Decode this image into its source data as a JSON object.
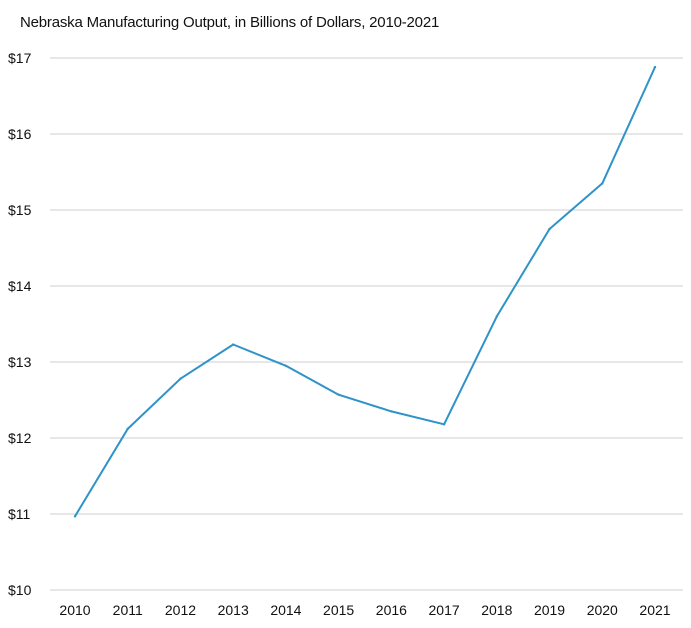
{
  "chart_data": {
    "type": "line",
    "title": "Nebraska Manufacturing Output, in Billions of Dollars, 2010-2021",
    "xlabel": "",
    "ylabel": "",
    "categories": [
      "2010",
      "2011",
      "2012",
      "2013",
      "2014",
      "2015",
      "2016",
      "2017",
      "2018",
      "2019",
      "2020",
      "2021"
    ],
    "series": [
      {
        "values": [
          10.97,
          12.12,
          12.78,
          13.23,
          12.95,
          12.57,
          12.35,
          12.18,
          13.6,
          14.75,
          15.35,
          16.88
        ],
        "color": "#2e93c9"
      }
    ],
    "ylim": [
      10,
      17
    ],
    "yticks": [
      10,
      11,
      12,
      13,
      14,
      15,
      16,
      17
    ],
    "ytick_labels": [
      "$10",
      "$11",
      "$12",
      "$13",
      "$14",
      "$15",
      "$16",
      "$17"
    ],
    "grid": true,
    "legend": "none",
    "colors": {
      "line": "#2e93c9",
      "grid": "#cfcfcf",
      "text": "#111111"
    }
  }
}
